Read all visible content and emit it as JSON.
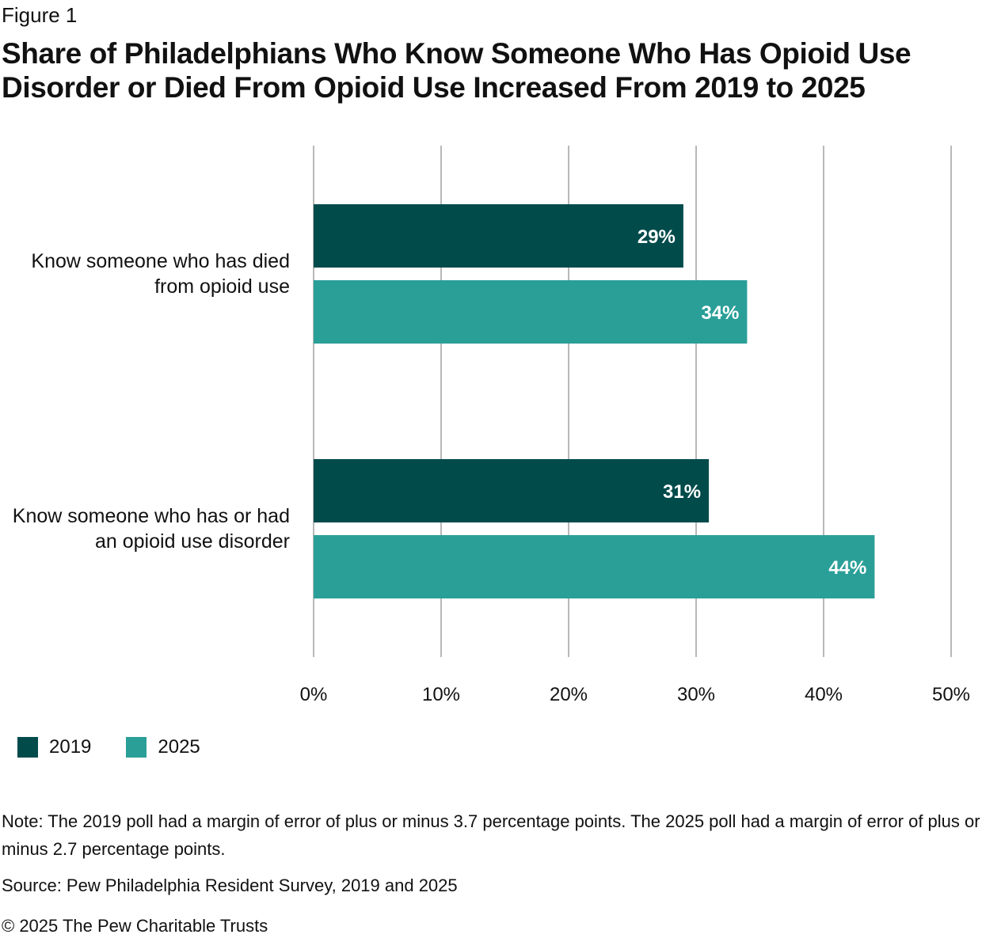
{
  "figure_label": "Figure 1",
  "title": "Share of Philadelphians Who Know Someone Who Has Opioid Use Disorder or Died From Opioid Use Increased From 2019 to 2025",
  "colors": {
    "s2019": "#024b4b",
    "s2025": "#2a9f98",
    "grid": "#999999"
  },
  "chart_data": {
    "type": "bar",
    "orientation": "horizontal",
    "categories": [
      [
        "Know someone who has died",
        "from opioid use"
      ],
      [
        "Know someone who has or had",
        "an opioid use disorder"
      ]
    ],
    "series": [
      {
        "name": "2019",
        "values": [
          29,
          31
        ],
        "labels": [
          "29%",
          "31%"
        ]
      },
      {
        "name": "2025",
        "values": [
          34,
          44
        ],
        "labels": [
          "34%",
          "44%"
        ]
      }
    ],
    "xlim": [
      0,
      50
    ],
    "xticks": [
      0,
      10,
      20,
      30,
      40,
      50
    ],
    "xtick_labels": [
      "0%",
      "10%",
      "20%",
      "30%",
      "40%",
      "50%"
    ],
    "grid": true,
    "legend": "bottom-left"
  },
  "note": "Note: The 2019 poll had a margin of error of plus or minus 3.7 percentage points. The 2025 poll had a margin of error of plus or minus 2.7 percentage points.",
  "source": "Source: Pew Philadelphia Resident Survey, 2019 and 2025",
  "copyright": "© 2025 The Pew Charitable Trusts"
}
